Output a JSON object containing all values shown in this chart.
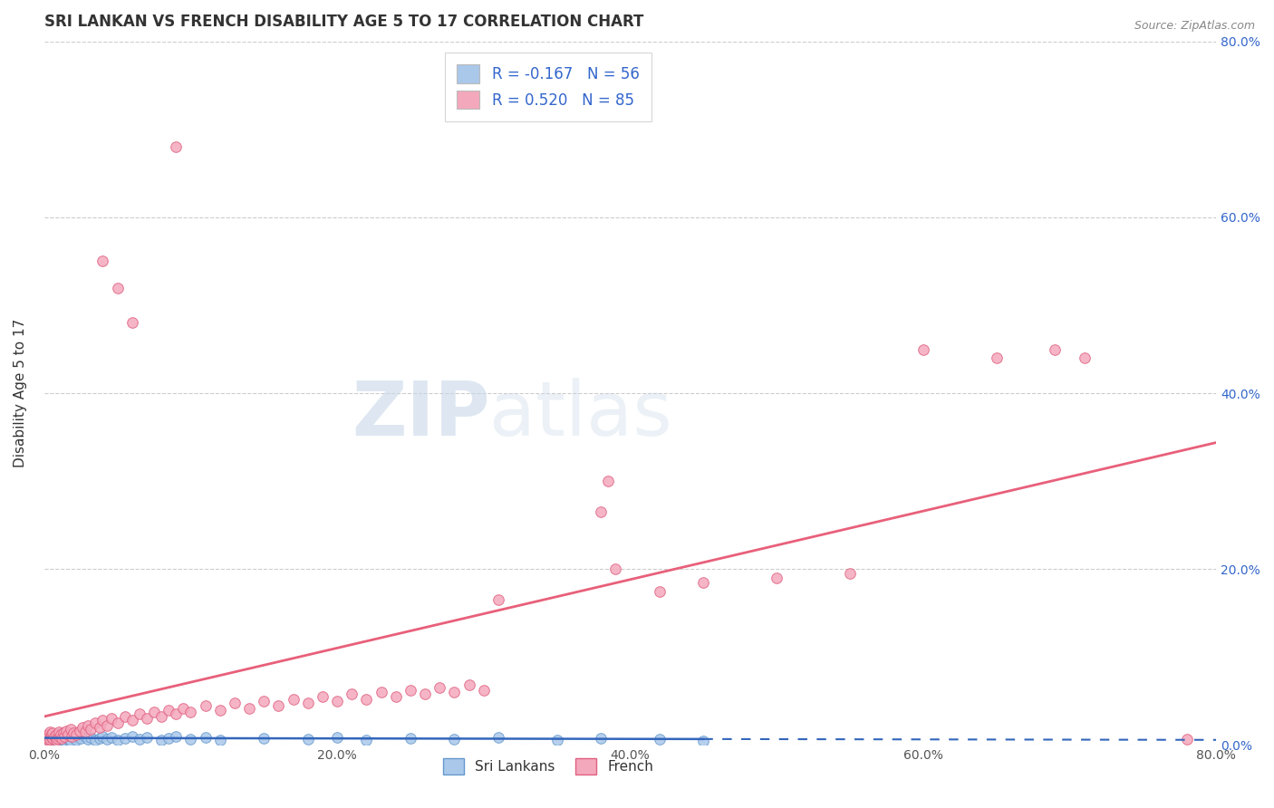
{
  "title": "SRI LANKAN VS FRENCH DISABILITY AGE 5 TO 17 CORRELATION CHART",
  "source": "Source: ZipAtlas.com",
  "ylabel": "Disability Age 5 to 17",
  "xlabel": "",
  "xlim": [
    0.0,
    0.8
  ],
  "ylim": [
    0.0,
    0.8
  ],
  "xticks": [
    0.0,
    0.2,
    0.4,
    0.6,
    0.8
  ],
  "yticks": [
    0.0,
    0.2,
    0.4,
    0.6,
    0.8
  ],
  "sri_lankan_R": -0.167,
  "sri_lankan_N": 56,
  "french_R": 0.52,
  "french_N": 85,
  "sri_lankan_color": "#aac8ea",
  "sri_lankan_edge": "#6699cc",
  "french_color": "#f4a8bc",
  "french_edge": "#e06080",
  "sri_lankan_line_color": "#3366bb",
  "french_line_color": "#e8607a",
  "legend_R_color": "#3366cc",
  "grid_color": "#cccccc",
  "background_color": "#ffffff",
  "watermark_color": "#c8d8e8",
  "title_fontsize": 12,
  "axis_label_fontsize": 11,
  "tick_fontsize": 10,
  "legend_fontsize": 12,
  "sl_x": [
    0.002,
    0.003,
    0.004,
    0.005,
    0.005,
    0.006,
    0.006,
    0.007,
    0.007,
    0.008,
    0.008,
    0.009,
    0.01,
    0.01,
    0.011,
    0.012,
    0.013,
    0.014,
    0.015,
    0.016,
    0.017,
    0.018,
    0.02,
    0.021,
    0.022,
    0.025,
    0.028,
    0.03,
    0.032,
    0.035,
    0.038,
    0.04,
    0.043,
    0.046,
    0.05,
    0.055,
    0.06,
    0.065,
    0.07,
    0.08,
    0.085,
    0.09,
    0.1,
    0.11,
    0.12,
    0.15,
    0.18,
    0.2,
    0.22,
    0.25,
    0.28,
    0.31,
    0.35,
    0.38,
    0.42,
    0.45
  ],
  "sl_y": [
    0.005,
    0.008,
    0.003,
    0.01,
    0.006,
    0.007,
    0.012,
    0.004,
    0.009,
    0.006,
    0.011,
    0.005,
    0.008,
    0.013,
    0.007,
    0.009,
    0.006,
    0.01,
    0.008,
    0.012,
    0.007,
    0.005,
    0.009,
    0.011,
    0.006,
    0.008,
    0.01,
    0.007,
    0.009,
    0.006,
    0.008,
    0.01,
    0.007,
    0.009,
    0.006,
    0.008,
    0.01,
    0.007,
    0.009,
    0.006,
    0.008,
    0.01,
    0.007,
    0.009,
    0.006,
    0.008,
    0.007,
    0.009,
    0.006,
    0.008,
    0.007,
    0.009,
    0.006,
    0.008,
    0.007,
    0.005
  ],
  "fr_x": [
    0.001,
    0.002,
    0.002,
    0.003,
    0.003,
    0.004,
    0.004,
    0.005,
    0.005,
    0.006,
    0.006,
    0.007,
    0.008,
    0.008,
    0.009,
    0.01,
    0.01,
    0.011,
    0.012,
    0.013,
    0.014,
    0.015,
    0.016,
    0.018,
    0.019,
    0.02,
    0.022,
    0.024,
    0.026,
    0.028,
    0.03,
    0.032,
    0.035,
    0.038,
    0.04,
    0.043,
    0.046,
    0.05,
    0.055,
    0.06,
    0.065,
    0.07,
    0.075,
    0.08,
    0.085,
    0.09,
    0.095,
    0.1,
    0.11,
    0.12,
    0.13,
    0.14,
    0.15,
    0.16,
    0.17,
    0.18,
    0.19,
    0.2,
    0.21,
    0.22,
    0.23,
    0.24,
    0.25,
    0.26,
    0.27,
    0.28,
    0.29,
    0.3,
    0.31,
    0.38,
    0.385,
    0.39,
    0.42,
    0.45,
    0.5,
    0.55,
    0.6,
    0.65,
    0.69,
    0.71,
    0.04,
    0.05,
    0.06,
    0.09,
    0.78
  ],
  "fr_y": [
    0.005,
    0.008,
    0.012,
    0.006,
    0.01,
    0.007,
    0.015,
    0.009,
    0.013,
    0.008,
    0.014,
    0.01,
    0.006,
    0.012,
    0.008,
    0.01,
    0.015,
    0.012,
    0.008,
    0.014,
    0.01,
    0.016,
    0.012,
    0.018,
    0.01,
    0.014,
    0.012,
    0.016,
    0.02,
    0.015,
    0.022,
    0.018,
    0.025,
    0.02,
    0.028,
    0.022,
    0.03,
    0.025,
    0.032,
    0.028,
    0.035,
    0.03,
    0.038,
    0.032,
    0.04,
    0.035,
    0.042,
    0.038,
    0.045,
    0.04,
    0.048,
    0.042,
    0.05,
    0.045,
    0.052,
    0.048,
    0.055,
    0.05,
    0.058,
    0.052,
    0.06,
    0.055,
    0.062,
    0.058,
    0.065,
    0.06,
    0.068,
    0.062,
    0.165,
    0.265,
    0.3,
    0.2,
    0.175,
    0.185,
    0.19,
    0.195,
    0.45,
    0.44,
    0.45,
    0.44,
    0.55,
    0.52,
    0.48,
    0.68,
    0.007
  ]
}
